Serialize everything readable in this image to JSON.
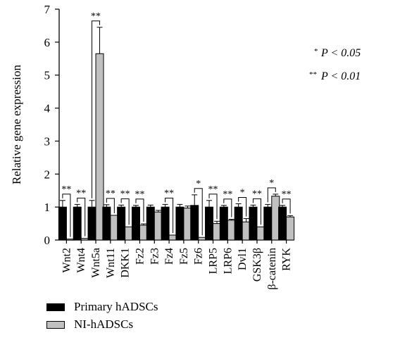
{
  "chart_data": {
    "type": "bar",
    "ylabel": "Relative gene expression",
    "xlabel": "",
    "ylim": [
      0,
      7
    ],
    "yticks": [
      "0",
      "1",
      "2",
      "3",
      "4",
      "5",
      "6",
      "7"
    ],
    "categories": [
      "Wnt2",
      "Wnt4",
      "Wnt5a",
      "Wnt11",
      "DKK1",
      "Fz2",
      "Fz3",
      "Fz4",
      "Fz5",
      "Fz6",
      "LRP5",
      "LRP6",
      "Dvl1",
      "GSK3β",
      "β-catenin",
      "RYK"
    ],
    "series": [
      {
        "name": "Primary hADSCs",
        "color": "#000000",
        "values": [
          1.0,
          1.0,
          1.0,
          1.0,
          1.0,
          1.0,
          1.0,
          1.0,
          1.0,
          1.05,
          1.0,
          1.0,
          1.0,
          1.0,
          1.0,
          1.0
        ],
        "errors": [
          0.2,
          0.08,
          0.2,
          0.07,
          0.06,
          0.05,
          0.06,
          0.08,
          0.08,
          0.32,
          0.2,
          0.05,
          0.1,
          0.06,
          0.08,
          0.05
        ]
      },
      {
        "name": "NI-hADSCs",
        "color": "#c0c0c0",
        "values": [
          0.03,
          0.05,
          5.65,
          0.75,
          0.4,
          0.45,
          0.85,
          0.15,
          0.97,
          0.08,
          0.5,
          0.6,
          0.55,
          0.4,
          1.33,
          0.7
        ],
        "errors": [
          0.0,
          0.0,
          0.8,
          0.0,
          0.0,
          0.04,
          0.05,
          0.0,
          0.06,
          0.0,
          0.07,
          0.03,
          0.1,
          0.0,
          0.06,
          0.04
        ]
      }
    ],
    "significance": [
      "**",
      "**",
      "**",
      "**",
      "**",
      "**",
      "",
      "**",
      "",
      "*",
      "**",
      "**",
      "*",
      "**",
      "*",
      "**"
    ],
    "annotations": [
      {
        "prefix": "*",
        "text": "P < 0.05"
      },
      {
        "prefix": "**",
        "text": "P < 0.01"
      }
    ],
    "legend_position": "bottom-left",
    "grid": false
  }
}
